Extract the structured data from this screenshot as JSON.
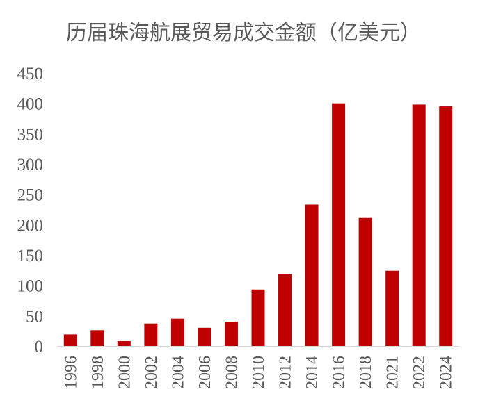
{
  "chart_data": {
    "type": "bar",
    "title": "历届珠海航展贸易成交金额（亿美元）",
    "xlabel": "",
    "ylabel": "",
    "categories": [
      "1996",
      "1998",
      "2000",
      "2002",
      "2004",
      "2006",
      "2008",
      "2010",
      "2012",
      "2014",
      "2016",
      "2018",
      "2021",
      "2022",
      "2024"
    ],
    "values": [
      19,
      26,
      8,
      37,
      45,
      30,
      40,
      93,
      118,
      233,
      400,
      211,
      124,
      398,
      395
    ],
    "ylim": [
      0,
      450
    ],
    "y_ticks": [
      "0",
      "50",
      "100",
      "150",
      "200",
      "250",
      "300",
      "350",
      "400",
      "450"
    ],
    "bar_color": "#c00000",
    "grid": false,
    "legend": "none"
  }
}
